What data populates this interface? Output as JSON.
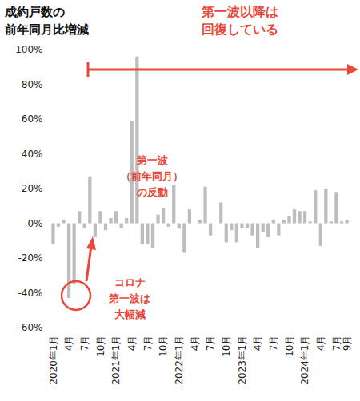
{
  "chart_data": {
    "type": "bar",
    "title": "成約戸数の\n前年同月比増減",
    "categories": [
      "2020年1月",
      null,
      null,
      "4月",
      null,
      null,
      "7月",
      null,
      null,
      "10月",
      null,
      null,
      "2021年1月",
      null,
      null,
      "4月",
      null,
      null,
      "7月",
      null,
      null,
      "10月",
      null,
      null,
      "2022年1月",
      null,
      null,
      "4月",
      null,
      null,
      "7月",
      null,
      null,
      "10月",
      null,
      null,
      "2023年1月",
      null,
      null,
      "4月",
      null,
      null,
      "7月",
      null,
      null,
      "10月",
      null,
      null,
      "2024年1月",
      null,
      null,
      "4月",
      null,
      null,
      "7月",
      null,
      "9月"
    ],
    "values": [
      -12,
      -2,
      2,
      -43,
      -35,
      7,
      -3,
      27,
      -8,
      7,
      -4,
      3,
      7,
      -3,
      3,
      59,
      96,
      -12,
      -12,
      -14,
      5,
      9,
      -2,
      22,
      -3,
      -17,
      8,
      0,
      2,
      21,
      -7,
      0,
      12,
      -11,
      -4,
      -11,
      -3,
      -3,
      -7,
      -14,
      -5,
      -8,
      2,
      -7,
      2,
      4,
      8,
      7,
      7,
      1,
      19,
      -13,
      20,
      1,
      18,
      1,
      2
    ],
    "color": "#bdbdbd",
    "ylim": [
      -60,
      100
    ],
    "yticks": [
      {
        "value": -60,
        "label": "-60%"
      },
      {
        "value": -40,
        "label": "-40%"
      },
      {
        "value": -20,
        "label": "-20%"
      },
      {
        "value": 0,
        "label": "0%"
      },
      {
        "value": 20,
        "label": "20%"
      },
      {
        "value": 40,
        "label": "40%"
      },
      {
        "value": 60,
        "label": "60%"
      },
      {
        "value": 80,
        "label": "80%"
      },
      {
        "value": 100,
        "label": "100%"
      }
    ],
    "grid": false,
    "annotations": [
      {
        "text": "第一波以降は\n回復している",
        "color": "#e8473a"
      },
      {
        "text": "第一波\n（前年同月）\nの反動",
        "color": "#e8473a"
      },
      {
        "text": "コロナ\n第一波は\n大幅減",
        "color": "#e8473a"
      }
    ]
  }
}
